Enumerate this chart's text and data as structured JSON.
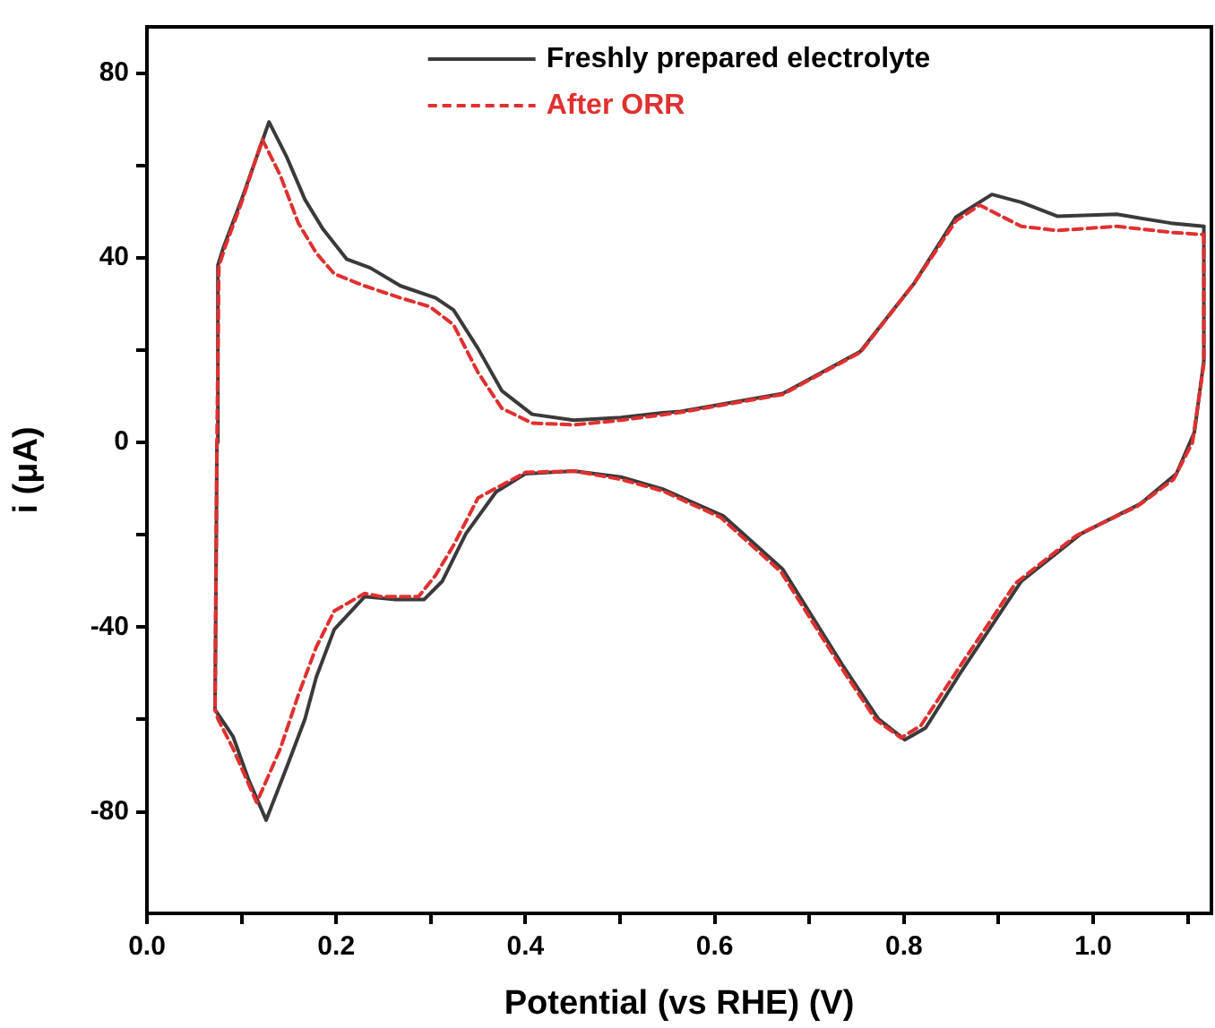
{
  "chart_data": {
    "type": "line",
    "xlabel": "Potential (vs RHE) (V)",
    "ylabel": "i (μA)",
    "xlim": [
      0,
      1.125
    ],
    "ylim": [
      -102,
      90
    ],
    "xticks": [
      {
        "value": 0,
        "label": "0.0"
      },
      {
        "value": 0.1,
        "label": null
      },
      {
        "value": 0.2,
        "label": "0.2"
      },
      {
        "value": 0.3,
        "label": null
      },
      {
        "value": 0.4,
        "label": "0.4"
      },
      {
        "value": 0.5,
        "label": null
      },
      {
        "value": 0.6,
        "label": "0.6"
      },
      {
        "value": 0.7,
        "label": null
      },
      {
        "value": 0.8,
        "label": "0.8"
      },
      {
        "value": 0.9,
        "label": null
      },
      {
        "value": 1.0,
        "label": "1.0"
      },
      {
        "value": 1.1,
        "label": null
      }
    ],
    "yticks": [
      -80,
      {
        "value": -60,
        "label": null
      },
      -40,
      {
        "value": -20,
        "label": null
      },
      0,
      {
        "value": 20,
        "label": null
      },
      40,
      {
        "value": 60,
        "label": null
      },
      80
    ],
    "grid": false,
    "legend": "top",
    "marker": "none",
    "series": [
      {
        "name": "Freshly prepared electrolyte",
        "color": "#3a3a3a",
        "line_style": "solid",
        "x": [
          0.072,
          0.074,
          0.075,
          0.081,
          0.1,
          0.129,
          0.148,
          0.167,
          0.186,
          0.211,
          0.236,
          0.268,
          0.305,
          0.324,
          0.35,
          0.375,
          0.407,
          0.451,
          0.501,
          0.545,
          0.564,
          0.672,
          0.754,
          0.811,
          0.855,
          0.893,
          0.924,
          0.962,
          1.025,
          1.082,
          1.117
        ],
        "values": [
          -57.9,
          0,
          38.4,
          42.3,
          52.6,
          69.4,
          61.7,
          52.6,
          46.2,
          39.7,
          37.8,
          33.9,
          31.3,
          28.7,
          20.3,
          11.2,
          6.1,
          4.8,
          5.4,
          6.4,
          6.7,
          10.6,
          19.7,
          34.5,
          48.8,
          53.7,
          52.0,
          49.0,
          49.4,
          47.5,
          46.8
        ]
      },
      {
        "color": "#3a3a3a",
        "line_style": "solid",
        "x": [
          1.117,
          1.117,
          1.107,
          1.088,
          1.05,
          0.987,
          0.924,
          0.861,
          0.823,
          0.801,
          0.773,
          0.735,
          0.672,
          0.609,
          0.545,
          0.501,
          0.451,
          0.4,
          0.369,
          0.337,
          0.312,
          0.293,
          0.261,
          0.23,
          0.198,
          0.179,
          0.167,
          0.148,
          0.126,
          0.107,
          0.091,
          0.072
        ],
        "values": [
          46.8,
          17.7,
          2.2,
          -6.8,
          -13.3,
          -19.8,
          -30.1,
          -49.5,
          -61.8,
          -64.4,
          -59.9,
          -48.2,
          -27.5,
          -15.9,
          -10.1,
          -7.5,
          -6.2,
          -6.8,
          -10.7,
          -19.8,
          -30.1,
          -34.0,
          -34.0,
          -33.4,
          -40.5,
          -50.8,
          -59.9,
          -70.2,
          -81.8,
          -72.8,
          -63.7,
          -57.9
        ]
      },
      {
        "name": "After ORR",
        "color": "#e03030",
        "line_style": "dashed",
        "x": [
          0.072,
          0.074,
          0.076,
          0.082,
          0.1,
          0.122,
          0.141,
          0.16,
          0.179,
          0.198,
          0.23,
          0.268,
          0.299,
          0.324,
          0.35,
          0.375,
          0.407,
          0.451,
          0.501,
          0.564,
          0.672,
          0.754,
          0.811,
          0.855,
          0.88,
          0.924,
          0.962,
          1.025,
          1.082,
          1.117
        ],
        "values": [
          -57,
          0,
          38,
          42,
          52,
          65.6,
          57.8,
          47.5,
          41.0,
          36.5,
          33.9,
          31.3,
          29.4,
          25.5,
          15.1,
          7.4,
          4.2,
          3.8,
          4.8,
          6.5,
          10.4,
          19.5,
          34.5,
          48,
          51.4,
          46.8,
          45.9,
          46.8,
          45.5,
          45.0
        ]
      },
      {
        "color": "#e03030",
        "line_style": "dashed",
        "x": [
          1.117,
          1.117,
          1.105,
          1.085,
          1.047,
          0.982,
          0.918,
          0.856,
          0.818,
          0.797,
          0.77,
          0.733,
          0.67,
          0.606,
          0.545,
          0.501,
          0.451,
          0.4,
          0.35,
          0.324,
          0.305,
          0.287,
          0.248,
          0.23,
          0.198,
          0.179,
          0.16,
          0.141,
          0.116,
          0.091,
          0.075,
          0.072
        ],
        "values": [
          45.0,
          17,
          0,
          -8,
          -13.8,
          -20.2,
          -30.5,
          -49.5,
          -61.3,
          -64,
          -60,
          -48.5,
          -28,
          -16.2,
          -10.5,
          -8.0,
          -6.2,
          -6.5,
          -12.0,
          -22.3,
          -28.8,
          -33.4,
          -33.4,
          -32.7,
          -36.5,
          -44.3,
          -54.7,
          -66.3,
          -78.0,
          -66.3,
          -59.9,
          -57.9
        ]
      }
    ]
  }
}
